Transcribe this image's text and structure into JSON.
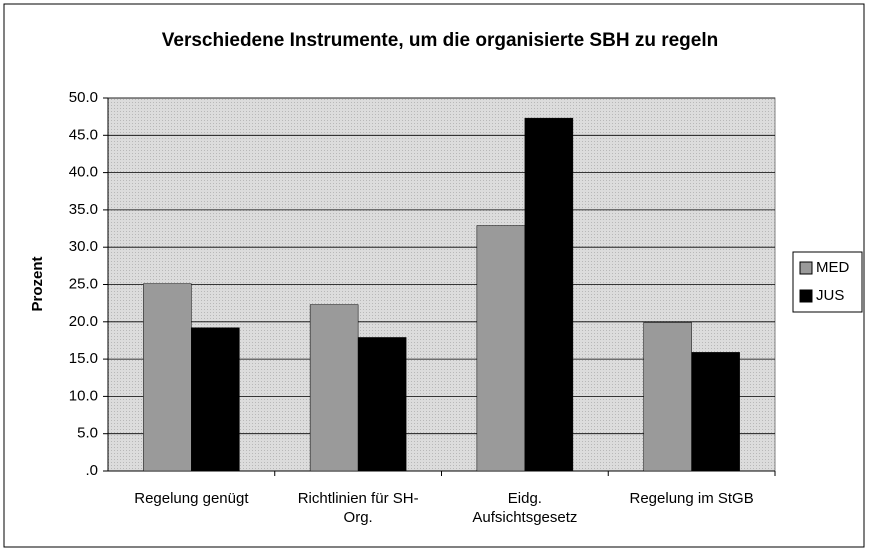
{
  "chart_data": {
    "type": "bar",
    "title": "Verschiedene Instrumente, um die organisierte SBH zu regeln",
    "y_label": "Prozent",
    "categories": [
      "Regelung genügt",
      "Richtlinien für SH-Org.",
      "Eidg. Aufsichtsgesetz",
      "Regelung im StGB"
    ],
    "series": [
      {
        "name": "MED",
        "color": "#9a9a9a",
        "values": [
          25.1,
          22.3,
          32.9,
          19.9
        ]
      },
      {
        "name": "JUS",
        "color": "#000000",
        "values": [
          19.2,
          17.9,
          47.3,
          15.9
        ]
      }
    ],
    "ylim": [
      0,
      50
    ],
    "yticks": [
      {
        "value": 0,
        "label": ".0"
      },
      {
        "value": 5,
        "label": "5.0"
      },
      {
        "value": 10,
        "label": "10.0"
      },
      {
        "value": 15,
        "label": "15.0"
      },
      {
        "value": 20,
        "label": "20.0"
      },
      {
        "value": 25,
        "label": "25.0"
      },
      {
        "value": 30,
        "label": "30.0"
      },
      {
        "value": 35,
        "label": "35.0"
      },
      {
        "value": 40,
        "label": "40.0"
      },
      {
        "value": 45,
        "label": "45.0"
      },
      {
        "value": 50,
        "label": "50.0"
      }
    ],
    "grid": true,
    "legend": "right"
  }
}
